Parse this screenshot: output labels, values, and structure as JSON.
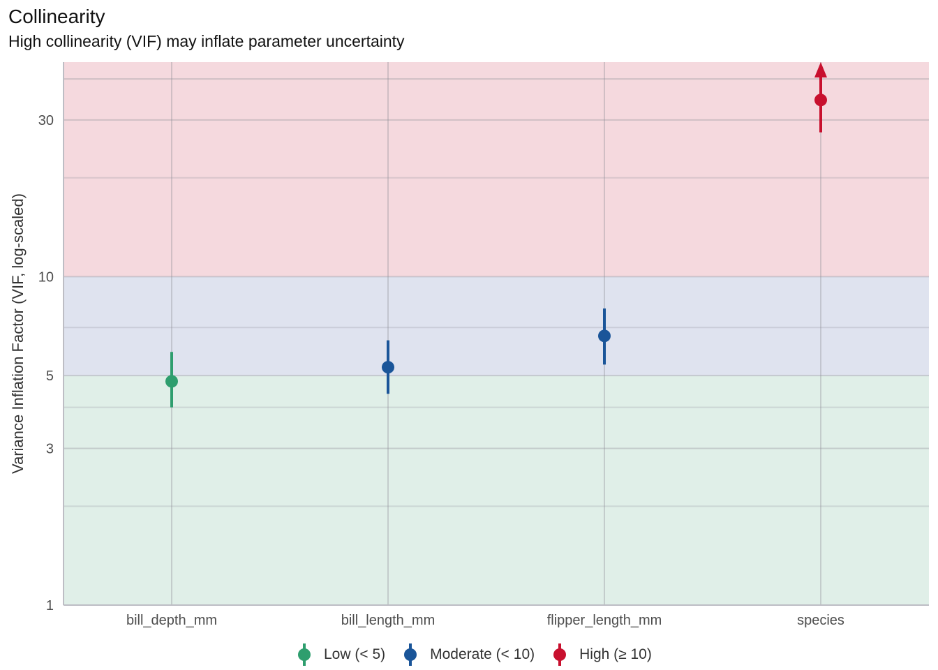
{
  "title": "Collinearity",
  "subtitle": "High collinearity (VIF) may inflate parameter uncertainty",
  "chart_data": {
    "type": "scatter",
    "title": "Collinearity",
    "subtitle": "High collinearity (VIF) may inflate parameter uncertainty",
    "xlabel": "",
    "ylabel": "Variance Inflation Factor (VIF, log-scaled)",
    "y_scale": "log",
    "ylim": [
      1,
      45
    ],
    "y_ticks": [
      1,
      3,
      5,
      10,
      30
    ],
    "grid": true,
    "legend_position": "bottom",
    "categories": [
      "bill_depth_mm",
      "bill_length_mm",
      "flipper_length_mm",
      "species"
    ],
    "points": [
      {
        "term": "bill_depth_mm",
        "vif": 4.8,
        "ci_low": 4.0,
        "ci_high": 5.9,
        "group": "Low (< 5)"
      },
      {
        "term": "bill_length_mm",
        "vif": 5.3,
        "ci_low": 4.4,
        "ci_high": 6.4,
        "group": "Moderate (< 10)"
      },
      {
        "term": "flipper_length_mm",
        "vif": 6.6,
        "ci_low": 5.4,
        "ci_high": 8.0,
        "group": "Moderate (< 10)"
      },
      {
        "term": "species",
        "vif": 34.5,
        "ci_low": 27.5,
        "ci_high": 45,
        "group": "High (≥ 10)",
        "ci_high_truncated": true
      }
    ],
    "bands": [
      {
        "from": 1,
        "to": 5,
        "group": "Low (< 5)",
        "color": "#e0efe8"
      },
      {
        "from": 5,
        "to": 10,
        "group": "Moderate (< 10)",
        "color": "#dfe3ef"
      },
      {
        "from": 10,
        "to": 45,
        "group": "High (≥ 10)",
        "color": "#f5d9de"
      }
    ],
    "legend": [
      {
        "label": "Low (< 5)",
        "color": "#2e9e6e"
      },
      {
        "label": "Moderate (< 10)",
        "color": "#1a5599"
      },
      {
        "label": "High (≥ 10)",
        "color": "#c8102e"
      }
    ]
  }
}
